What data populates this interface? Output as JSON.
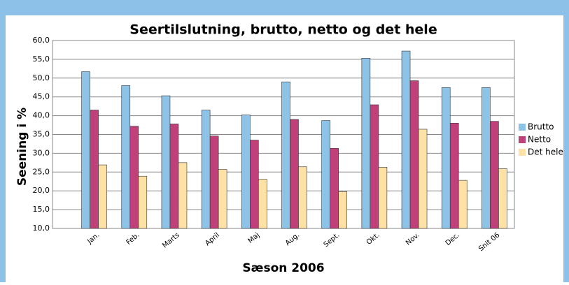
{
  "chart_data": {
    "type": "bar",
    "title": "Seertilslutning, brutto, netto og det hele",
    "y_label": "Seening i %",
    "x_label": "Sæson 2006",
    "categories": [
      "Jan.",
      "Feb.",
      "Marts",
      "April",
      "Maj",
      "Aug.",
      "Sept.",
      "Okt.",
      "Nov.",
      "Dec.",
      "Snit 06"
    ],
    "series": [
      {
        "name": "Brutto",
        "color": "#8ec3e8",
        "values": [
          51.7,
          48.0,
          45.3,
          41.5,
          40.2,
          49.0,
          38.7,
          55.3,
          57.2,
          47.5,
          47.5
        ]
      },
      {
        "name": "Netto",
        "color": "#c0407a",
        "values": [
          41.5,
          37.2,
          37.8,
          34.6,
          33.5,
          39.0,
          31.3,
          42.9,
          49.3,
          38.0,
          38.5
        ]
      },
      {
        "name": "Det hele",
        "color": "#fde1a5",
        "values": [
          26.9,
          23.9,
          27.5,
          25.7,
          23.1,
          26.4,
          19.8,
          26.3,
          36.4,
          22.8,
          25.9
        ]
      }
    ],
    "ylim": [
      10,
      60
    ],
    "yticks": [
      {
        "value": 10,
        "label": "10,0"
      },
      {
        "value": 15,
        "label": "15,0"
      },
      {
        "value": 20,
        "label": "20,0"
      },
      {
        "value": 25,
        "label": "25,0"
      },
      {
        "value": 30,
        "label": "30,0"
      },
      {
        "value": 35,
        "label": "35,0"
      },
      {
        "value": 40,
        "label": "40,0"
      },
      {
        "value": 45,
        "label": "45,0"
      },
      {
        "value": 50,
        "label": "50,0"
      },
      {
        "value": 55,
        "label": "55,0"
      },
      {
        "value": 60,
        "label": "60,0"
      }
    ],
    "grid": true,
    "legend": "right"
  }
}
